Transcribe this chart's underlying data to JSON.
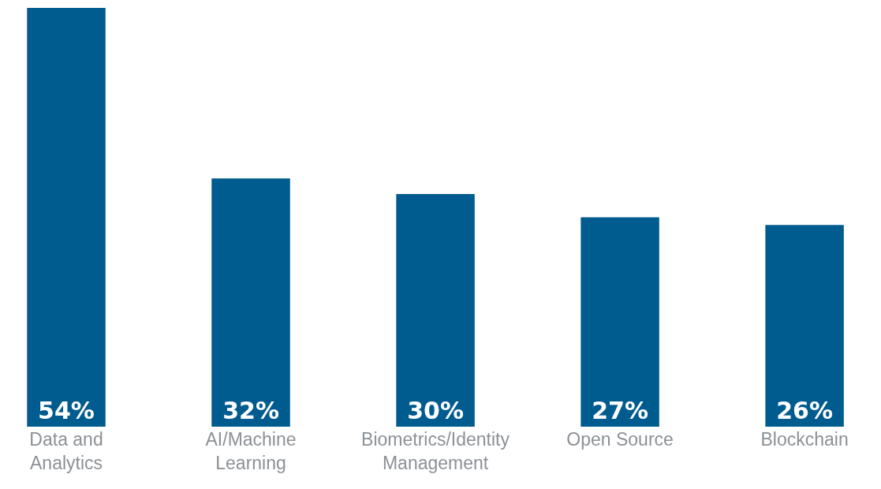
{
  "chart_data": {
    "type": "bar",
    "categories": [
      "Data and Analytics",
      "AI/Machine Learning",
      "Biometrics/Identity Management",
      "Open Source",
      "Blockchain"
    ],
    "values": [
      54,
      32,
      30,
      27,
      26
    ],
    "value_labels": [
      "54%",
      "32%",
      "30%",
      "27%",
      "26%"
    ],
    "color": "#005b8f",
    "legend": false
  }
}
